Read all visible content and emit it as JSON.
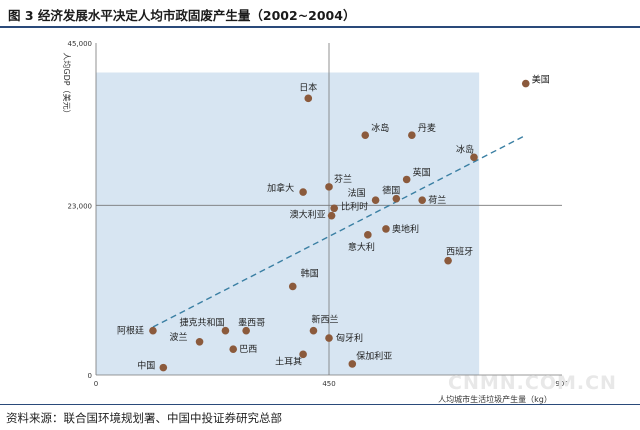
{
  "header": {
    "title": "图 3  经济发展水平决定人均市政固废产生量（2002~2004）"
  },
  "footer": {
    "source": "资料来源：联合国环境规划署、中国中投证券研究总部",
    "watermark": "CNMN.COM.CN"
  },
  "colors": {
    "highlight_region": "#d7e5f2",
    "point_fill": "#8b5a3c",
    "trendline": "#3a7fa3",
    "axis": "#777777"
  },
  "chart_data": {
    "type": "scatter",
    "xlabel": "人均城市生活垃圾产生量（kg）",
    "ylabel": "人均GDP（美元）",
    "xlim": [
      0,
      900
    ],
    "ylim": [
      0,
      45000
    ],
    "x_ticks": [
      "0",
      "450",
      "900"
    ],
    "y_ticks": [
      "0",
      "23,000",
      "45,000"
    ],
    "reference_lines": {
      "x": 450,
      "y": 23000
    },
    "highlight_region": {
      "x": [
        0,
        740
      ],
      "y": [
        0,
        41000
      ]
    },
    "trendline": {
      "x": [
        110,
        830
      ],
      "y": [
        6500,
        32500
      ]
    },
    "points": [
      {
        "name": "美国",
        "x": 830,
        "y": 39500
      },
      {
        "name": "日本",
        "x": 410,
        "y": 37500
      },
      {
        "name": "冰岛",
        "x": 520,
        "y": 32500
      },
      {
        "name": "丹麦",
        "x": 610,
        "y": 32500
      },
      {
        "name": "冰岛",
        "x": 730,
        "y": 29500
      },
      {
        "name": "芬兰",
        "x": 450,
        "y": 25500
      },
      {
        "name": "加拿大",
        "x": 400,
        "y": 24800
      },
      {
        "name": "英国",
        "x": 600,
        "y": 26500
      },
      {
        "name": "法国",
        "x": 540,
        "y": 23700
      },
      {
        "name": "德国",
        "x": 580,
        "y": 23900
      },
      {
        "name": "荷兰",
        "x": 630,
        "y": 23700
      },
      {
        "name": "比利时",
        "x": 460,
        "y": 22600
      },
      {
        "name": "澳大利亚",
        "x": 455,
        "y": 21600
      },
      {
        "name": "奥地利",
        "x": 560,
        "y": 19800
      },
      {
        "name": "意大利",
        "x": 525,
        "y": 19000
      },
      {
        "name": "西班牙",
        "x": 680,
        "y": 15500
      },
      {
        "name": "韩国",
        "x": 380,
        "y": 12000
      },
      {
        "name": "阿根廷",
        "x": 110,
        "y": 6000
      },
      {
        "name": "捷克共和国",
        "x": 250,
        "y": 6000
      },
      {
        "name": "墨西哥",
        "x": 290,
        "y": 6000
      },
      {
        "name": "新西兰",
        "x": 420,
        "y": 6000
      },
      {
        "name": "匈牙利",
        "x": 450,
        "y": 5000
      },
      {
        "name": "波兰",
        "x": 200,
        "y": 4500
      },
      {
        "name": "巴西",
        "x": 265,
        "y": 3500
      },
      {
        "name": "土耳其",
        "x": 400,
        "y": 2800
      },
      {
        "name": "保加利亚",
        "x": 495,
        "y": 1500
      },
      {
        "name": "中国",
        "x": 130,
        "y": 1000
      }
    ]
  }
}
